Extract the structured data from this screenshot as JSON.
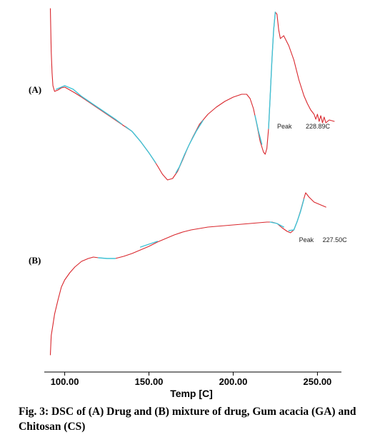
{
  "chart_data": {
    "type": "line",
    "title": "",
    "xlabel": "Temp [C]",
    "ylabel": "",
    "xlim": [
      90,
      260
    ],
    "xticks": [
      {
        "value": 100,
        "label": "100.00"
      },
      {
        "value": 150,
        "label": "150.00"
      },
      {
        "value": 200,
        "label": "200.00"
      },
      {
        "value": 250,
        "label": "250.00"
      }
    ],
    "grid": false,
    "y_axis_shown": false,
    "curve_color": "#d9262c",
    "fit_color": "#3fc3d6",
    "panels": [
      {
        "label": "(A)",
        "peak_label": "Peak",
        "peak_value": "228.89C",
        "peak_x": 221,
        "series": [
          [
            91.5,
            0
          ],
          [
            92,
            60
          ],
          [
            92.5,
            90
          ],
          [
            93,
            108
          ],
          [
            94,
            116
          ],
          [
            96,
            114
          ],
          [
            98,
            111
          ],
          [
            100,
            110
          ],
          [
            103,
            114
          ],
          [
            106,
            118
          ],
          [
            110,
            124
          ],
          [
            115,
            132
          ],
          [
            120,
            140
          ],
          [
            125,
            148
          ],
          [
            130,
            156
          ],
          [
            135,
            164
          ],
          [
            140,
            172
          ],
          [
            145,
            186
          ],
          [
            150,
            202
          ],
          [
            155,
            220
          ],
          [
            158,
            232
          ],
          [
            161,
            240
          ],
          [
            164,
            238
          ],
          [
            167,
            228
          ],
          [
            170,
            212
          ],
          [
            173,
            195
          ],
          [
            176,
            180
          ],
          [
            180,
            162
          ],
          [
            185,
            148
          ],
          [
            190,
            138
          ],
          [
            195,
            130
          ],
          [
            200,
            124
          ],
          [
            205,
            120
          ],
          [
            208,
            120
          ],
          [
            210,
            126
          ],
          [
            212,
            140
          ],
          [
            214,
            162
          ],
          [
            216,
            186
          ],
          [
            218,
            201
          ],
          [
            219,
            204
          ],
          [
            220,
            196
          ],
          [
            221,
            168
          ],
          [
            222,
            120
          ],
          [
            223,
            72
          ],
          [
            224,
            30
          ],
          [
            225,
            5
          ],
          [
            226,
            8
          ],
          [
            227,
            30
          ],
          [
            228,
            42
          ],
          [
            230,
            38
          ],
          [
            233,
            52
          ],
          [
            236,
            72
          ],
          [
            239,
            100
          ],
          [
            242,
            122
          ],
          [
            244,
            133
          ],
          [
            246,
            142
          ],
          [
            248,
            148
          ],
          [
            249,
            155
          ],
          [
            250,
            148
          ],
          [
            251,
            158
          ],
          [
            252,
            150
          ],
          [
            253,
            160
          ],
          [
            254,
            152
          ],
          [
            255,
            160
          ],
          [
            257,
            156
          ],
          [
            260,
            158
          ]
        ],
        "fit_segments": [
          [
            [
              95,
              113
            ],
            [
              100,
              108
            ],
            [
              105,
              113
            ],
            [
              110,
              123
            ],
            [
              115,
              131
            ],
            [
              120,
              139
            ],
            [
              125,
              147
            ],
            [
              130,
              155
            ],
            [
              134,
              162
            ]
          ],
          [
            [
              136,
              165
            ],
            [
              140,
              172
            ],
            [
              145,
              186
            ],
            [
              150,
              202
            ],
            [
              154,
              216
            ]
          ],
          [
            [
              166,
              230
            ],
            [
              168,
              222
            ],
            [
              171,
              205
            ],
            [
              174,
              190
            ],
            [
              178,
              172
            ],
            [
              182,
              157
            ]
          ],
          [
            [
              213,
              150
            ],
            [
              215,
              172
            ],
            [
              217,
              190
            ]
          ],
          [
            [
              221,
              168
            ],
            [
              222,
              120
            ],
            [
              223,
              72
            ],
            [
              224,
              30
            ],
            [
              225,
              5
            ]
          ]
        ]
      },
      {
        "label": "(B)",
        "peak_label": "Peak",
        "peak_value": "227.50C",
        "peak_x": 234,
        "series": [
          [
            91.5,
            497
          ],
          [
            92,
            470
          ],
          [
            93,
            455
          ],
          [
            94,
            440
          ],
          [
            96,
            420
          ],
          [
            98,
            402
          ],
          [
            100,
            392
          ],
          [
            103,
            382
          ],
          [
            106,
            374
          ],
          [
            110,
            366
          ],
          [
            114,
            362
          ],
          [
            117,
            360
          ],
          [
            120,
            361
          ],
          [
            125,
            362
          ],
          [
            130,
            362
          ],
          [
            135,
            359
          ],
          [
            140,
            355
          ],
          [
            145,
            350
          ],
          [
            150,
            345
          ],
          [
            155,
            339
          ],
          [
            160,
            334
          ],
          [
            165,
            329
          ],
          [
            170,
            325
          ],
          [
            175,
            322
          ],
          [
            180,
            320
          ],
          [
            185,
            318
          ],
          [
            190,
            317
          ],
          [
            195,
            316
          ],
          [
            200,
            315
          ],
          [
            205,
            314
          ],
          [
            210,
            313
          ],
          [
            215,
            312
          ],
          [
            220,
            311
          ],
          [
            223,
            311
          ],
          [
            226,
            313
          ],
          [
            229,
            319
          ],
          [
            232,
            324
          ],
          [
            234,
            326
          ],
          [
            236,
            322
          ],
          [
            238,
            310
          ],
          [
            240,
            295
          ],
          [
            242,
            278
          ],
          [
            243,
            270
          ],
          [
            245,
            276
          ],
          [
            248,
            283
          ],
          [
            252,
            287
          ],
          [
            255,
            290
          ]
        ],
        "fit_segments": [
          [
            [
              120,
              361
            ],
            [
              125,
              362
            ],
            [
              130,
              362
            ]
          ],
          [
            [
              145,
              346
            ],
            [
              150,
              342
            ],
            [
              155,
              338
            ]
          ],
          [
            [
              222,
              311
            ],
            [
              226,
              313
            ],
            [
              230,
              318
            ]
          ],
          [
            [
              233,
              323
            ],
            [
              236,
              322
            ],
            [
              238,
              310
            ],
            [
              240,
              296
            ],
            [
              242,
              279
            ]
          ]
        ]
      }
    ]
  },
  "caption": "Fig. 3: DSC of (A) Drug and (B) mixture of drug, Gum acacia (GA) and Chitosan (CS)"
}
